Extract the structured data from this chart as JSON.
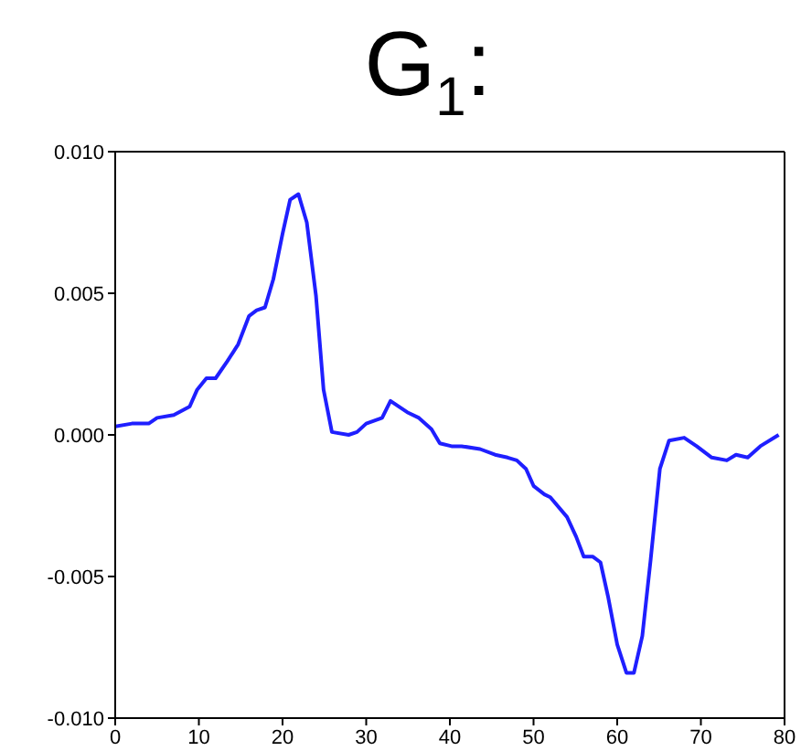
{
  "chart_data": {
    "type": "line",
    "title": "G$_{1}$:",
    "x": [
      0,
      2,
      4,
      5,
      7,
      8.9,
      9.8,
      10.9,
      12,
      13.4,
      14.7,
      16,
      16.9,
      17.9,
      18.9,
      20,
      20.9,
      21.9,
      22.9,
      24,
      24.9,
      25.9,
      27.9,
      28.9,
      30,
      31.9,
      32.9,
      34.9,
      36.3,
      37.8,
      38.8,
      40.2,
      41.4,
      43.6,
      45.4,
      46.9,
      48,
      49.1,
      50,
      51.3,
      52,
      54,
      55.1,
      56,
      57.1,
      58,
      58.9,
      60,
      61.1,
      62,
      63,
      64,
      65.1,
      66.2,
      68,
      69.5,
      71.3,
      73.1,
      74.2,
      75.6,
      77.1,
      79.3
    ],
    "series": [
      {
        "color": "#1f1fff",
        "values": [
          0.0003,
          0.0004,
          0.0004,
          0.0006,
          0.0007,
          0.001,
          0.0016,
          0.002,
          0.002,
          0.0026,
          0.0032,
          0.0042,
          0.0044,
          0.0045,
          0.0055,
          0.0071,
          0.0083,
          0.0085,
          0.0075,
          0.0049,
          0.0016,
          0.0001,
          0.0,
          0.0001,
          0.0004,
          0.0006,
          0.0012,
          0.0008,
          0.0006,
          0.0002,
          -0.0003,
          -0.0004,
          -0.0004,
          -0.0005,
          -0.0007,
          -0.0008,
          -0.0009,
          -0.0012,
          -0.0018,
          -0.0021,
          -0.0022,
          -0.0029,
          -0.0036,
          -0.0043,
          -0.0043,
          -0.0045,
          -0.0057,
          -0.0074,
          -0.0084,
          -0.0084,
          -0.0071,
          -0.0044,
          -0.0012,
          -0.0002,
          -0.0001,
          -0.0004,
          -0.0008,
          -0.0009,
          -0.0007,
          -0.0008,
          -0.0004,
          0.0
        ]
      }
    ],
    "xlim": [
      0,
      80
    ],
    "xticks": [
      0,
      10,
      20,
      30,
      40,
      50,
      60,
      70,
      80
    ],
    "ylim": [
      -0.01,
      0.01
    ],
    "yticks": [
      {
        "value": -0.01,
        "label": "-0.010"
      },
      {
        "value": -0.005,
        "label": "-0.005"
      },
      {
        "value": 0,
        "label": "0.000"
      },
      {
        "value": 0.005,
        "label": "0.005"
      },
      {
        "value": 0.01,
        "label": "0.010"
      }
    ],
    "grid": false
  }
}
